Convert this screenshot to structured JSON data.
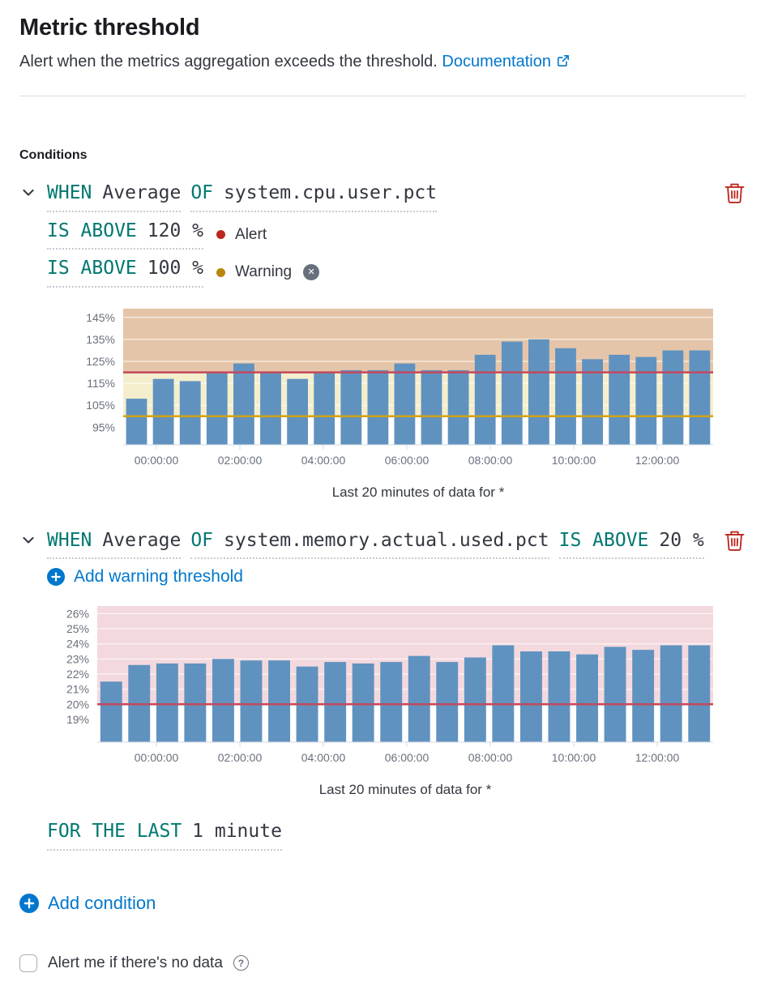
{
  "header": {
    "title": "Metric threshold",
    "subtitle": "Alert when the metrics aggregation exceeds the threshold.",
    "documentation_label": "Documentation"
  },
  "conditions": {
    "section_label": "Conditions",
    "condition1": {
      "when_keyword": "WHEN",
      "aggregation": "Average",
      "of_keyword": "OF",
      "metric": "system.cpu.user.pct",
      "alert_operator": "IS ABOVE",
      "alert_value": "120 %",
      "alert_label": "Alert",
      "warning_operator": "IS ABOVE",
      "warning_value": "100 %",
      "warning_label": "Warning"
    },
    "condition2": {
      "when_keyword": "WHEN",
      "aggregation": "Average",
      "of_keyword": "OF",
      "metric": "system.memory.actual.used.pct",
      "alert_operator": "IS ABOVE",
      "alert_value": "20 %",
      "add_warning_label": "Add warning threshold"
    },
    "for_the_last": {
      "keyword": "FOR THE LAST",
      "value": "1 minute"
    },
    "add_condition_label": "Add condition"
  },
  "no_data": {
    "label": "Alert me if there's no data",
    "help_icon": "?"
  },
  "icons": {
    "remove_x": "✕"
  },
  "colors": {
    "accent": "#0077CC",
    "keyword_green": "#007871",
    "alert_dot": "#BD271E",
    "warning_dot": "#B8860B",
    "alert_line": "#c4485c",
    "warning_line": "#d1a313",
    "bar_blue": "#6092C0",
    "danger": "#BD271E"
  },
  "chart_data": [
    {
      "type": "bar",
      "title": "",
      "ylabel": "",
      "xlabel": "Last 20 minutes of data for *",
      "caption": "Last 20 minutes of data for *",
      "ylim": [
        87,
        149
      ],
      "yticks": [
        95,
        105,
        115,
        125,
        135,
        145
      ],
      "ytick_suffix": "%",
      "pad_left": 120,
      "bar_color": "#6092C0",
      "values": [
        108,
        117,
        116,
        120,
        124,
        120,
        117,
        120,
        121,
        121,
        124,
        121,
        121,
        128,
        134,
        135,
        131,
        126,
        128,
        127,
        130,
        130
      ],
      "zones": [
        {
          "from": 120,
          "to": 149,
          "color": "#e5c5a9",
          "meaning": "alert zone"
        },
        {
          "from": 100,
          "to": 120,
          "color": "#f4eecd",
          "meaning": "warning zone"
        }
      ],
      "thresholds": [
        {
          "value": 120,
          "color": "#c4485c",
          "label": "Alert"
        },
        {
          "value": 100,
          "color": "#d1a313",
          "label": "Warning"
        }
      ],
      "xticks": {
        "labels": [
          "00:00:00",
          "02:00:00",
          "04:00:00",
          "06:00:00",
          "08:00:00",
          "10:00:00",
          "12:00:00"
        ],
        "fracs": [
          0.0563,
          0.1978,
          0.3393,
          0.4808,
          0.6222,
          0.7637,
          0.9052
        ]
      }
    },
    {
      "type": "bar",
      "title": "",
      "ylabel": "",
      "xlabel": "Last 20 minutes of data for *",
      "caption": "Last 20 minutes of data for *",
      "ylim": [
        17.5,
        26.5
      ],
      "yticks": [
        19,
        20,
        21,
        22,
        23,
        24,
        25,
        26
      ],
      "ytick_suffix": "%",
      "pad_left": 88,
      "bar_color": "#6092C0",
      "values": [
        21.5,
        22.6,
        22.7,
        22.7,
        23,
        22.9,
        22.9,
        22.5,
        22.8,
        22.7,
        22.8,
        23.2,
        22.8,
        23.1,
        23.9,
        23.5,
        23.5,
        23.3,
        23.8,
        23.6,
        23.9,
        23.9
      ],
      "zones": [
        {
          "from": 20,
          "to": 26.5,
          "color": "#f3d9de",
          "meaning": "alert zone"
        }
      ],
      "thresholds": [
        {
          "value": 20,
          "color": "#c4485c",
          "label": "Alert"
        }
      ],
      "xticks": {
        "labels": [
          "00:00:00",
          "02:00:00",
          "04:00:00",
          "06:00:00",
          "08:00:00",
          "10:00:00",
          "12:00:00"
        ],
        "fracs": [
          0.0961,
          0.2316,
          0.3671,
          0.5026,
          0.6382,
          0.7737,
          0.9092
        ]
      }
    }
  ]
}
